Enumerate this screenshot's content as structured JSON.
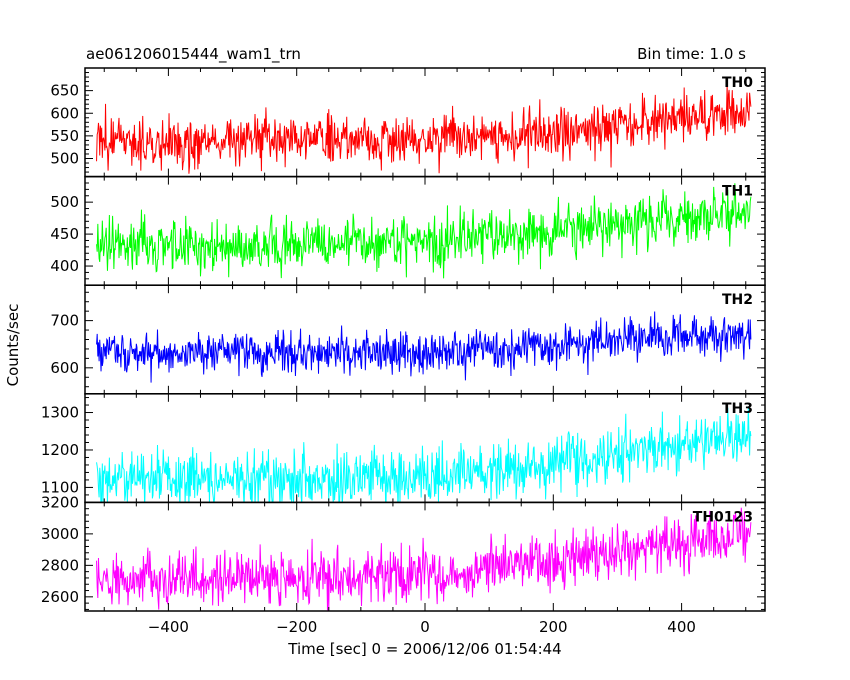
{
  "chart_data": {
    "type": "line",
    "title": "ae061206015444_wam1_trn",
    "subtitle": "Bin time: 1.0 s",
    "xlabel": "Time [sec] 0 = 2006/12/06 01:54:44",
    "ylabel": "Counts/sec",
    "xlim": [
      -530,
      530
    ],
    "x_ticks": [
      -400,
      -200,
      0,
      200,
      400
    ],
    "x_tick_labels": [
      "−400",
      "−200",
      "0",
      "200",
      "400"
    ],
    "x_range": [
      -512,
      508
    ],
    "bin": 1.0,
    "grid": false,
    "panels": [
      {
        "name": "TH0",
        "color": "#ff0000",
        "ylim": [
          460,
          700
        ],
        "y_ticks": [
          500,
          550,
          600,
          650
        ],
        "y_tick_labels": [
          "500",
          "550",
          "600",
          "650"
        ],
        "trend": [
          [
            -512,
            535
          ],
          [
            0,
            545
          ],
          [
            200,
            560
          ],
          [
            400,
            590
          ],
          [
            508,
            610
          ]
        ],
        "noise": 28
      },
      {
        "name": "TH1",
        "color": "#00ff00",
        "ylim": [
          370,
          540
        ],
        "y_ticks": [
          400,
          450,
          500
        ],
        "y_tick_labels": [
          "400",
          "450",
          "500"
        ],
        "trend": [
          [
            -512,
            430
          ],
          [
            0,
            440
          ],
          [
            200,
            455
          ],
          [
            400,
            475
          ],
          [
            508,
            485
          ]
        ],
        "noise": 20
      },
      {
        "name": "TH2",
        "color": "#0000ff",
        "ylim": [
          545,
          775
        ],
        "y_ticks": [
          600,
          700
        ],
        "y_tick_labels": [
          "600",
          "700"
        ],
        "trend": [
          [
            -512,
            630
          ],
          [
            0,
            635
          ],
          [
            200,
            645
          ],
          [
            400,
            665
          ],
          [
            508,
            675
          ]
        ],
        "noise": 22
      },
      {
        "name": "TH3",
        "color": "#00ffff",
        "ylim": [
          1060,
          1350
        ],
        "y_ticks": [
          1100,
          1200,
          1300
        ],
        "y_tick_labels": [
          "1100",
          "1200",
          "1300"
        ],
        "trend": [
          [
            -512,
            1120
          ],
          [
            0,
            1125
          ],
          [
            200,
            1160
          ],
          [
            400,
            1215
          ],
          [
            508,
            1255
          ]
        ],
        "noise": 38
      },
      {
        "name": "TH0123",
        "color": "#ff00ff",
        "ylim": [
          2510,
          3200
        ],
        "y_ticks": [
          2600,
          2800,
          3000,
          3200
        ],
        "y_tick_labels": [
          "2600",
          "2800",
          "3000",
          "3200"
        ],
        "trend": [
          [
            -512,
            2710
          ],
          [
            0,
            2730
          ],
          [
            200,
            2820
          ],
          [
            400,
            2940
          ],
          [
            508,
            3010
          ]
        ],
        "noise": 85
      }
    ]
  }
}
